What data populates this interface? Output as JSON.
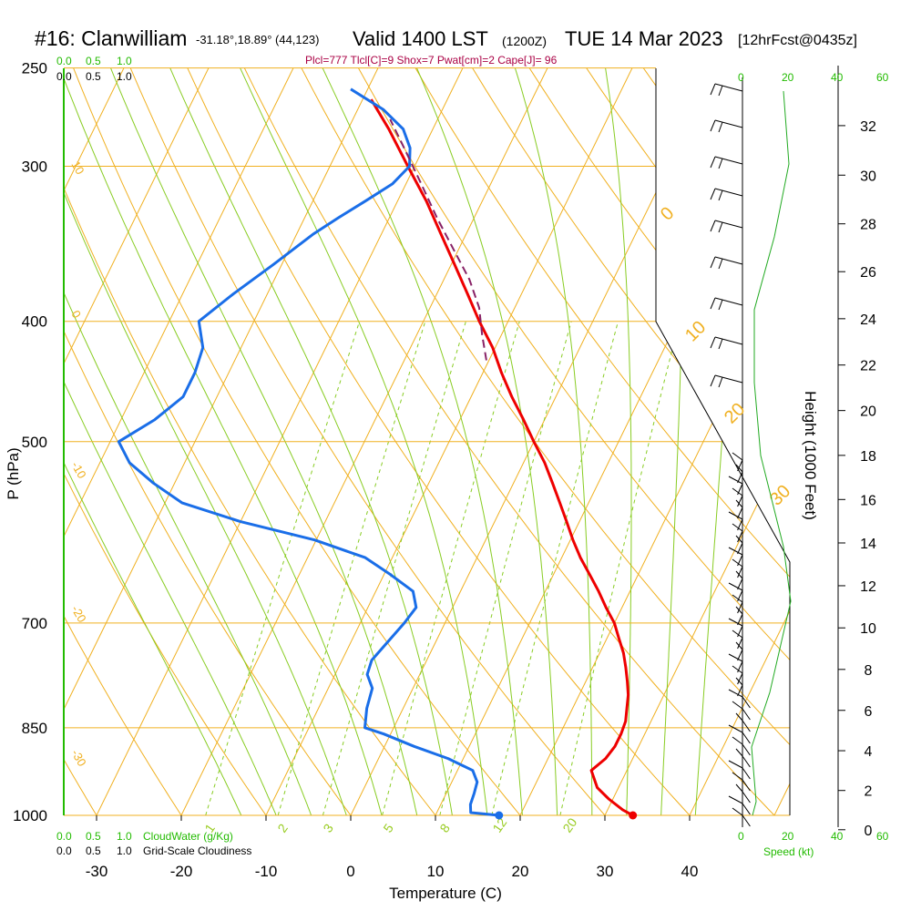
{
  "header": {
    "station": "#16: Clanwilliam",
    "coords": "-31.18°,18.89° (44,123)",
    "valid": "Valid 1400 LST",
    "utc": "(1200Z)",
    "date": "TUE 14 Mar 2023",
    "forecast": "[12hrFcst@0435z]",
    "indices": "Plcl=777 Tlcl[C]=9 Shox=7 Pwat[cm]=2 Cape[J]= 96"
  },
  "chart_data": {
    "type": "skew-t",
    "xlabel": "Temperature (C)",
    "ylabel": "P (hPa)",
    "y2label": "Height (1000 Feet)",
    "temperature_ticks": [
      "-30",
      "-20",
      "-10",
      "0",
      "10",
      "20",
      "30",
      "40"
    ],
    "temperature_tick_values": [
      -30,
      -20,
      -10,
      0,
      10,
      20,
      30,
      40
    ],
    "pressure_ticks": [
      "250",
      "300",
      "400",
      "500",
      "700",
      "850",
      "1000"
    ],
    "pressure_tick_values": [
      250,
      300,
      400,
      500,
      700,
      850,
      1000
    ],
    "height_ticks": [
      "0",
      "2",
      "4",
      "6",
      "8",
      "10",
      "12",
      "14",
      "16",
      "18",
      "20",
      "22",
      "24",
      "26",
      "28",
      "30",
      "32"
    ],
    "height_tick_values": [
      0,
      2,
      4,
      6,
      8,
      10,
      12,
      14,
      16,
      18,
      20,
      22,
      24,
      26,
      28,
      30,
      32
    ],
    "dry_adiabat_labels": [
      "10",
      "0",
      "-10",
      "-20",
      "-30",
      "0",
      "10",
      "20",
      "30"
    ],
    "mixing_ratio_labels": [
      "1",
      "2",
      "3",
      "5",
      "8",
      "12",
      "20"
    ],
    "series": [
      {
        "name": "Temperature",
        "color": "#ee0000",
        "points": [
          [
            1000,
            33.3
          ],
          [
            990,
            31.8
          ],
          [
            970,
            29.5
          ],
          [
            950,
            27.5
          ],
          [
            920,
            25.8
          ],
          [
            900,
            26.8
          ],
          [
            880,
            27.2
          ],
          [
            860,
            27.2
          ],
          [
            840,
            27
          ],
          [
            820,
            26.4
          ],
          [
            800,
            25.8
          ],
          [
            780,
            24.9
          ],
          [
            760,
            23.9
          ],
          [
            740,
            22.8
          ],
          [
            720,
            21.4
          ],
          [
            700,
            20
          ],
          [
            680,
            18.1
          ],
          [
            660,
            16.3
          ],
          [
            640,
            14.3
          ],
          [
            620,
            12.2
          ],
          [
            600,
            10.3
          ],
          [
            580,
            8.5
          ],
          [
            560,
            6.6
          ],
          [
            540,
            4.6
          ],
          [
            520,
            2.5
          ],
          [
            500,
            0
          ],
          [
            480,
            -2.5
          ],
          [
            460,
            -5.2
          ],
          [
            440,
            -7.8
          ],
          [
            420,
            -10.3
          ],
          [
            400,
            -13.4
          ],
          [
            380,
            -16.4
          ],
          [
            360,
            -19.6
          ],
          [
            340,
            -23
          ],
          [
            320,
            -26.6
          ],
          [
            300,
            -30.8
          ],
          [
            280,
            -35.2
          ],
          [
            265,
            -39
          ]
        ]
      },
      {
        "name": "Dewpoint",
        "color": "#1a6ee8",
        "points": [
          [
            1000,
            17.5
          ],
          [
            995,
            14
          ],
          [
            980,
            13.5
          ],
          [
            960,
            13.3
          ],
          [
            940,
            13
          ],
          [
            920,
            11.8
          ],
          [
            900,
            8.2
          ],
          [
            880,
            3.5
          ],
          [
            860,
            -0.8
          ],
          [
            850,
            -3.4
          ],
          [
            820,
            -4.3
          ],
          [
            790,
            -4.8
          ],
          [
            770,
            -6.2
          ],
          [
            750,
            -6.5
          ],
          [
            700,
            -4.8
          ],
          [
            680,
            -4.3
          ],
          [
            660,
            -5.6
          ],
          [
            640,
            -9.2
          ],
          [
            620,
            -13.2
          ],
          [
            600,
            -20.2
          ],
          [
            580,
            -30
          ],
          [
            560,
            -38
          ],
          [
            540,
            -42.5
          ],
          [
            520,
            -46.5
          ],
          [
            500,
            -49
          ],
          [
            480,
            -46
          ],
          [
            460,
            -44
          ],
          [
            440,
            -44
          ],
          [
            420,
            -44.5
          ],
          [
            400,
            -46.5
          ],
          [
            380,
            -44
          ],
          [
            360,
            -41
          ],
          [
            340,
            -38
          ],
          [
            330,
            -36
          ],
          [
            320,
            -33.8
          ],
          [
            310,
            -31.6
          ],
          [
            300,
            -30.6
          ],
          [
            290,
            -31.6
          ],
          [
            280,
            -33.5
          ],
          [
            270,
            -37
          ],
          [
            260,
            -42
          ]
        ]
      },
      {
        "name": "Parcel",
        "color": "#882266",
        "points": [
          [
            430,
            -10.3
          ],
          [
            410,
            -12.3
          ],
          [
            390,
            -14.2
          ],
          [
            370,
            -17
          ],
          [
            350,
            -20.6
          ],
          [
            330,
            -24.4
          ],
          [
            310,
            -28.2
          ],
          [
            290,
            -32.3
          ],
          [
            275,
            -35.6
          ]
        ]
      }
    ],
    "surface_markers": [
      {
        "name": "surface-temperature",
        "temperature": 33.3,
        "color": "#ee0000"
      },
      {
        "name": "surface-dewpoint",
        "temperature": 17.5,
        "color": "#1a6ee8"
      }
    ],
    "bottom_legend": {
      "cloudwater_label": "CloudWater (g/Kg)",
      "cloudiness_label": "Grid-Scale Cloudiness",
      "scale_green": [
        "0.0",
        "0.5",
        "1.0"
      ],
      "scale_black": [
        "0.0",
        "0.5",
        "1.0"
      ]
    },
    "top_legend": {
      "scale_green": [
        "0.0",
        "0.5",
        "1.0"
      ],
      "scale_black": [
        "0.0",
        "0.5",
        "1.0"
      ]
    },
    "wind_speed_scale": {
      "label": "Speed (kt)",
      "ticks": [
        "0",
        "20",
        "40",
        "60"
      ]
    }
  }
}
